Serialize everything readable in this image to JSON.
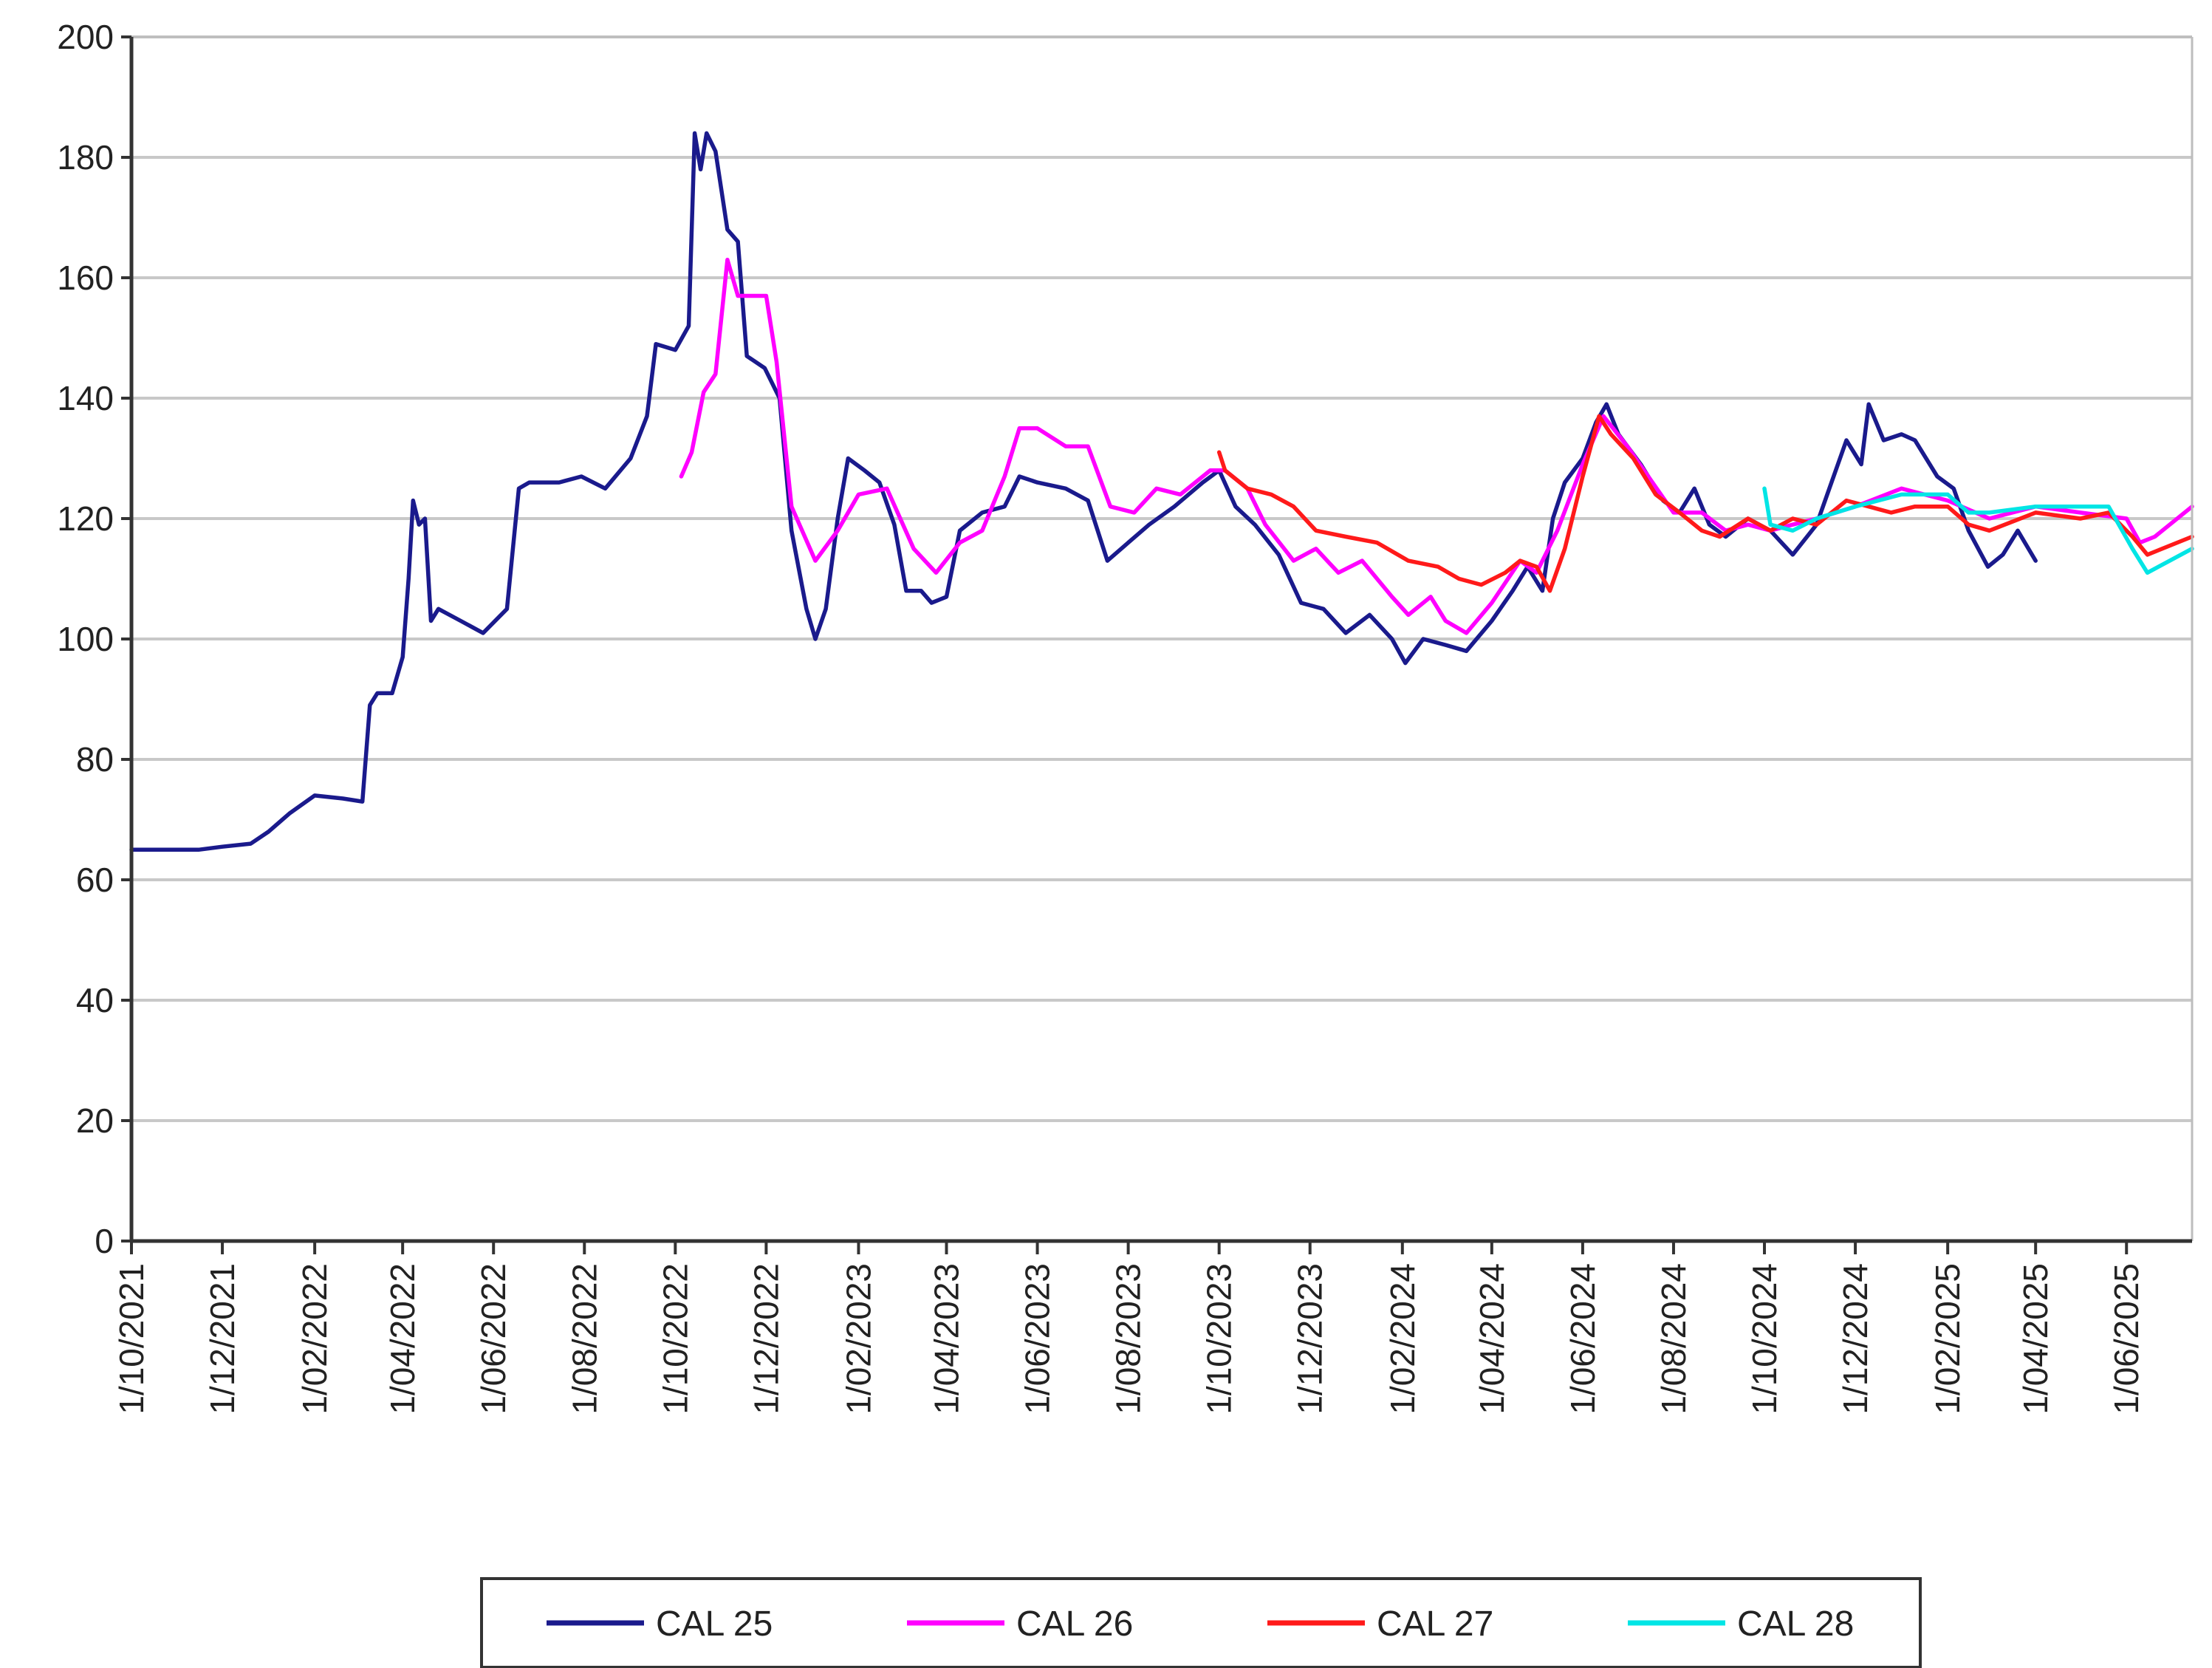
{
  "chart_data": {
    "type": "line",
    "title": "",
    "xlabel": "",
    "ylabel": "",
    "ylim": [
      0,
      200
    ],
    "y_ticks": [
      0,
      20,
      40,
      60,
      80,
      100,
      120,
      140,
      160,
      180,
      200
    ],
    "xlim": [
      "2021-10-01",
      "2025-07-15"
    ],
    "x_ticks": [
      "1/10/2021",
      "1/12/2021",
      "1/02/2022",
      "1/04/2022",
      "1/06/2022",
      "1/08/2022",
      "1/10/2022",
      "1/12/2022",
      "1/02/2023",
      "1/04/2023",
      "1/06/2023",
      "1/08/2023",
      "1/10/2023",
      "1/12/2023",
      "1/02/2024",
      "1/04/2024",
      "1/06/2024",
      "1/08/2024",
      "1/10/2024",
      "1/12/2024",
      "1/02/2025",
      "1/04/2025",
      "1/06/2025"
    ],
    "grid": "horizontal",
    "legend": {
      "position": "bottom",
      "border": true
    },
    "series": [
      {
        "name": "CAL 25",
        "color": "#1a1a8c",
        "points": [
          [
            "2021-10-01",
            65
          ],
          [
            "2021-11-15",
            65
          ],
          [
            "2021-12-01",
            65.5
          ],
          [
            "2021-12-20",
            66
          ],
          [
            "2022-01-01",
            68
          ],
          [
            "2022-01-15",
            71
          ],
          [
            "2022-02-01",
            74
          ],
          [
            "2022-02-20",
            73.5
          ],
          [
            "2022-03-05",
            73
          ],
          [
            "2022-03-10",
            89
          ],
          [
            "2022-03-15",
            91
          ],
          [
            "2022-03-25",
            91
          ],
          [
            "2022-04-01",
            97
          ],
          [
            "2022-04-05",
            110
          ],
          [
            "2022-04-08",
            123
          ],
          [
            "2022-04-12",
            119
          ],
          [
            "2022-04-16",
            120
          ],
          [
            "2022-04-20",
            103
          ],
          [
            "2022-04-25",
            105
          ],
          [
            "2022-05-10",
            103
          ],
          [
            "2022-05-25",
            101
          ],
          [
            "2022-06-10",
            105
          ],
          [
            "2022-06-18",
            125
          ],
          [
            "2022-06-25",
            126
          ],
          [
            "2022-07-15",
            126
          ],
          [
            "2022-07-30",
            127
          ],
          [
            "2022-08-15",
            125
          ],
          [
            "2022-09-01",
            130
          ],
          [
            "2022-09-12",
            137
          ],
          [
            "2022-09-18",
            149
          ],
          [
            "2022-10-01",
            148
          ],
          [
            "2022-10-10",
            152
          ],
          [
            "2022-10-14",
            184
          ],
          [
            "2022-10-18",
            178
          ],
          [
            "2022-10-22",
            184
          ],
          [
            "2022-10-28",
            181
          ],
          [
            "2022-11-05",
            168
          ],
          [
            "2022-11-12",
            166
          ],
          [
            "2022-11-18",
            147
          ],
          [
            "2022-11-30",
            145
          ],
          [
            "2022-12-10",
            140
          ],
          [
            "2022-12-18",
            118
          ],
          [
            "2022-12-28",
            105
          ],
          [
            "2023-01-03",
            100
          ],
          [
            "2023-01-10",
            105
          ],
          [
            "2023-01-18",
            120
          ],
          [
            "2023-01-25",
            130
          ],
          [
            "2023-02-05",
            128
          ],
          [
            "2023-02-15",
            126
          ],
          [
            "2023-02-25",
            119
          ],
          [
            "2023-03-05",
            108
          ],
          [
            "2023-03-15",
            108
          ],
          [
            "2023-03-22",
            106
          ],
          [
            "2023-04-01",
            107
          ],
          [
            "2023-04-10",
            118
          ],
          [
            "2023-04-25",
            121
          ],
          [
            "2023-05-10",
            122
          ],
          [
            "2023-05-20",
            127
          ],
          [
            "2023-06-01",
            126
          ],
          [
            "2023-06-20",
            125
          ],
          [
            "2023-07-05",
            123
          ],
          [
            "2023-07-18",
            113
          ],
          [
            "2023-08-01",
            116
          ],
          [
            "2023-08-15",
            119
          ],
          [
            "2023-09-01",
            122
          ],
          [
            "2023-09-20",
            126
          ],
          [
            "2023-10-01",
            128
          ],
          [
            "2023-10-12",
            122
          ],
          [
            "2023-10-25",
            119
          ],
          [
            "2023-11-10",
            114
          ],
          [
            "2023-11-25",
            106
          ],
          [
            "2023-12-10",
            105
          ],
          [
            "2023-12-25",
            101
          ],
          [
            "2024-01-10",
            104
          ],
          [
            "2024-01-25",
            100
          ],
          [
            "2024-02-03",
            96
          ],
          [
            "2024-02-15",
            100
          ],
          [
            "2024-03-01",
            99
          ],
          [
            "2024-03-15",
            98
          ],
          [
            "2024-04-01",
            103
          ],
          [
            "2024-04-15",
            108
          ],
          [
            "2024-04-25",
            112
          ],
          [
            "2024-05-05",
            108
          ],
          [
            "2024-05-12",
            120
          ],
          [
            "2024-05-20",
            126
          ],
          [
            "2024-06-01",
            130
          ],
          [
            "2024-06-10",
            136
          ],
          [
            "2024-06-17",
            139
          ],
          [
            "2024-06-25",
            134
          ],
          [
            "2024-07-10",
            129
          ],
          [
            "2024-07-25",
            123
          ],
          [
            "2024-08-05",
            121
          ],
          [
            "2024-08-15",
            125
          ],
          [
            "2024-08-25",
            119
          ],
          [
            "2024-09-05",
            117
          ],
          [
            "2024-09-20",
            120
          ],
          [
            "2024-10-05",
            118
          ],
          [
            "2024-10-20",
            114
          ],
          [
            "2024-11-05",
            119
          ],
          [
            "2024-11-15",
            126
          ],
          [
            "2024-11-25",
            133
          ],
          [
            "2024-12-05",
            129
          ],
          [
            "2024-12-10",
            139
          ],
          [
            "2024-12-20",
            133
          ],
          [
            "2025-01-01",
            134
          ],
          [
            "2025-01-10",
            133
          ],
          [
            "2025-01-25",
            127
          ],
          [
            "2025-02-05",
            125
          ],
          [
            "2025-02-15",
            118
          ],
          [
            "2025-02-28",
            112
          ],
          [
            "2025-03-10",
            114
          ],
          [
            "2025-03-20",
            118
          ],
          [
            "2025-04-01",
            113
          ]
        ]
      },
      {
        "name": "CAL 26",
        "color": "#ff00ff",
        "points": [
          [
            "2022-10-05",
            127
          ],
          [
            "2022-10-12",
            131
          ],
          [
            "2022-10-20",
            141
          ],
          [
            "2022-10-28",
            144
          ],
          [
            "2022-11-05",
            163
          ],
          [
            "2022-11-12",
            157
          ],
          [
            "2022-12-01",
            157
          ],
          [
            "2022-12-08",
            146
          ],
          [
            "2022-12-18",
            122
          ],
          [
            "2023-01-03",
            113
          ],
          [
            "2023-01-18",
            118
          ],
          [
            "2023-02-01",
            124
          ],
          [
            "2023-02-20",
            125
          ],
          [
            "2023-03-10",
            115
          ],
          [
            "2023-03-25",
            111
          ],
          [
            "2023-04-10",
            116
          ],
          [
            "2023-04-25",
            118
          ],
          [
            "2023-05-10",
            127
          ],
          [
            "2023-05-20",
            135
          ],
          [
            "2023-06-01",
            135
          ],
          [
            "2023-06-20",
            132
          ],
          [
            "2023-07-05",
            132
          ],
          [
            "2023-07-20",
            122
          ],
          [
            "2023-08-05",
            121
          ],
          [
            "2023-08-20",
            125
          ],
          [
            "2023-09-05",
            124
          ],
          [
            "2023-09-25",
            128
          ],
          [
            "2023-10-05",
            128
          ],
          [
            "2023-10-20",
            125
          ],
          [
            "2023-11-01",
            119
          ],
          [
            "2023-11-20",
            113
          ],
          [
            "2023-12-05",
            115
          ],
          [
            "2023-12-20",
            111
          ],
          [
            "2024-01-05",
            113
          ],
          [
            "2024-01-25",
            107
          ],
          [
            "2024-02-05",
            104
          ],
          [
            "2024-02-20",
            107
          ],
          [
            "2024-03-01",
            103
          ],
          [
            "2024-03-15",
            101
          ],
          [
            "2024-04-01",
            106
          ],
          [
            "2024-04-20",
            113
          ],
          [
            "2024-05-01",
            111
          ],
          [
            "2024-05-15",
            118
          ],
          [
            "2024-06-01",
            129
          ],
          [
            "2024-06-15",
            137
          ],
          [
            "2024-07-01",
            132
          ],
          [
            "2024-07-15",
            127
          ],
          [
            "2024-08-01",
            121
          ],
          [
            "2024-08-20",
            121
          ],
          [
            "2024-09-05",
            118
          ],
          [
            "2024-09-20",
            119
          ],
          [
            "2024-10-05",
            118
          ],
          [
            "2024-10-20",
            119
          ],
          [
            "2024-11-05",
            120
          ],
          [
            "2024-12-01",
            122
          ],
          [
            "2025-01-01",
            125
          ],
          [
            "2025-02-01",
            123
          ],
          [
            "2025-03-01",
            120
          ],
          [
            "2025-04-01",
            122
          ],
          [
            "2025-05-01",
            121
          ],
          [
            "2025-06-01",
            120
          ],
          [
            "2025-06-10",
            116
          ],
          [
            "2025-06-20",
            117
          ],
          [
            "2025-07-15",
            122
          ]
        ]
      },
      {
        "name": "CAL 27",
        "color": "#ff1a1a",
        "points": [
          [
            "2023-10-01",
            131
          ],
          [
            "2023-10-05",
            128
          ],
          [
            "2023-10-20",
            125
          ],
          [
            "2023-11-05",
            124
          ],
          [
            "2023-11-20",
            122
          ],
          [
            "2023-12-05",
            118
          ],
          [
            "2023-12-25",
            117
          ],
          [
            "2024-01-15",
            116
          ],
          [
            "2024-02-05",
            113
          ],
          [
            "2024-02-25",
            112
          ],
          [
            "2024-03-10",
            110
          ],
          [
            "2024-03-25",
            109
          ],
          [
            "2024-04-10",
            111
          ],
          [
            "2024-04-20",
            113
          ],
          [
            "2024-05-01",
            112
          ],
          [
            "2024-05-10",
            108
          ],
          [
            "2024-05-20",
            115
          ],
          [
            "2024-06-01",
            127
          ],
          [
            "2024-06-12",
            137
          ],
          [
            "2024-06-20",
            134
          ],
          [
            "2024-07-05",
            130
          ],
          [
            "2024-07-20",
            124
          ],
          [
            "2024-08-05",
            121
          ],
          [
            "2024-08-20",
            118
          ],
          [
            "2024-09-01",
            117
          ],
          [
            "2024-09-20",
            120
          ],
          [
            "2024-10-05",
            118
          ],
          [
            "2024-10-20",
            120
          ],
          [
            "2024-11-05",
            119
          ],
          [
            "2024-11-25",
            123
          ],
          [
            "2024-12-10",
            122
          ],
          [
            "2024-12-25",
            121
          ],
          [
            "2025-01-10",
            122
          ],
          [
            "2025-02-01",
            122
          ],
          [
            "2025-02-15",
            119
          ],
          [
            "2025-03-01",
            118
          ],
          [
            "2025-04-01",
            121
          ],
          [
            "2025-05-01",
            120
          ],
          [
            "2025-05-20",
            121
          ],
          [
            "2025-06-05",
            117
          ],
          [
            "2025-06-15",
            114
          ],
          [
            "2025-07-15",
            117
          ]
        ]
      },
      {
        "name": "CAL 28",
        "color": "#00e5e5",
        "points": [
          [
            "2024-10-01",
            125
          ],
          [
            "2024-10-05",
            119
          ],
          [
            "2024-10-20",
            118
          ],
          [
            "2024-11-05",
            120
          ],
          [
            "2024-12-01",
            122
          ],
          [
            "2025-01-01",
            124
          ],
          [
            "2025-02-01",
            124
          ],
          [
            "2025-02-15",
            121
          ],
          [
            "2025-03-01",
            121
          ],
          [
            "2025-04-01",
            122
          ],
          [
            "2025-05-01",
            122
          ],
          [
            "2025-05-20",
            122
          ],
          [
            "2025-06-05",
            115
          ],
          [
            "2025-06-15",
            111
          ],
          [
            "2025-07-15",
            115
          ]
        ]
      }
    ]
  }
}
